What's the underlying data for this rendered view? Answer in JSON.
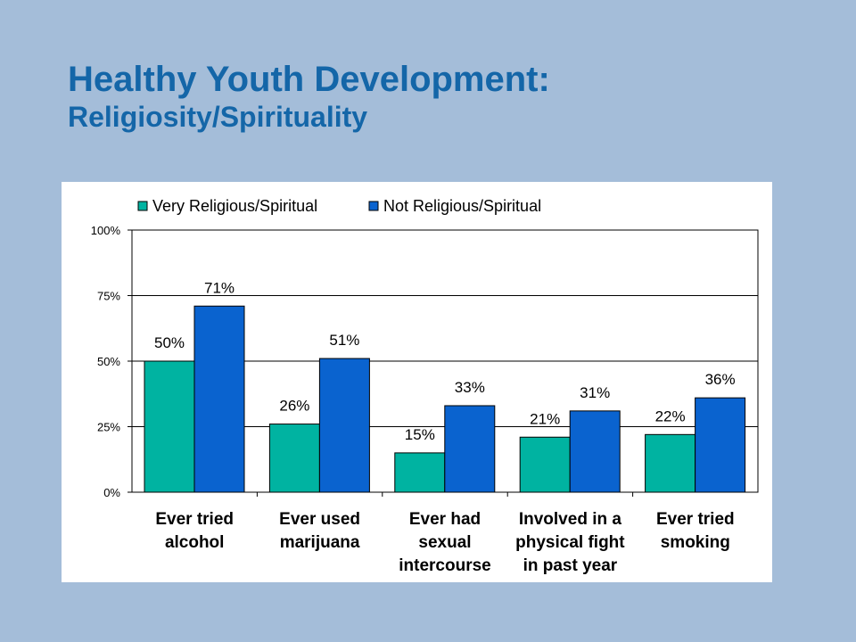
{
  "header": {
    "title": "Healthy Youth Development:",
    "subtitle": "Religiosity/Spirituality"
  },
  "colors": {
    "background": "#a4bdd9",
    "title": "#1466a8",
    "series_very": "#00b3a1",
    "series_not": "#0a63cf"
  },
  "chart_data": {
    "type": "bar",
    "categories": [
      [
        "Ever tried",
        "alcohol"
      ],
      [
        "Ever used",
        "marijuana"
      ],
      [
        "Ever had",
        "sexual",
        "intercourse"
      ],
      [
        "Involved in a",
        "physical fight",
        "in past year"
      ],
      [
        "Ever tried",
        "smoking"
      ]
    ],
    "series": [
      {
        "name": "Very Religious/Spiritual",
        "values": [
          50,
          26,
          15,
          21,
          22
        ],
        "labels": [
          "50%",
          "26%",
          "15%",
          "21%",
          "22%"
        ]
      },
      {
        "name": "Not Religious/Spiritual",
        "values": [
          71,
          51,
          33,
          31,
          36
        ],
        "labels": [
          "71%",
          "51%",
          "33%",
          "31%",
          "36%"
        ]
      }
    ],
    "yticks": [
      "0%",
      "25%",
      "50%",
      "75%",
      "100%"
    ],
    "ylim": [
      0,
      100
    ],
    "grid": true,
    "legend": "top"
  }
}
